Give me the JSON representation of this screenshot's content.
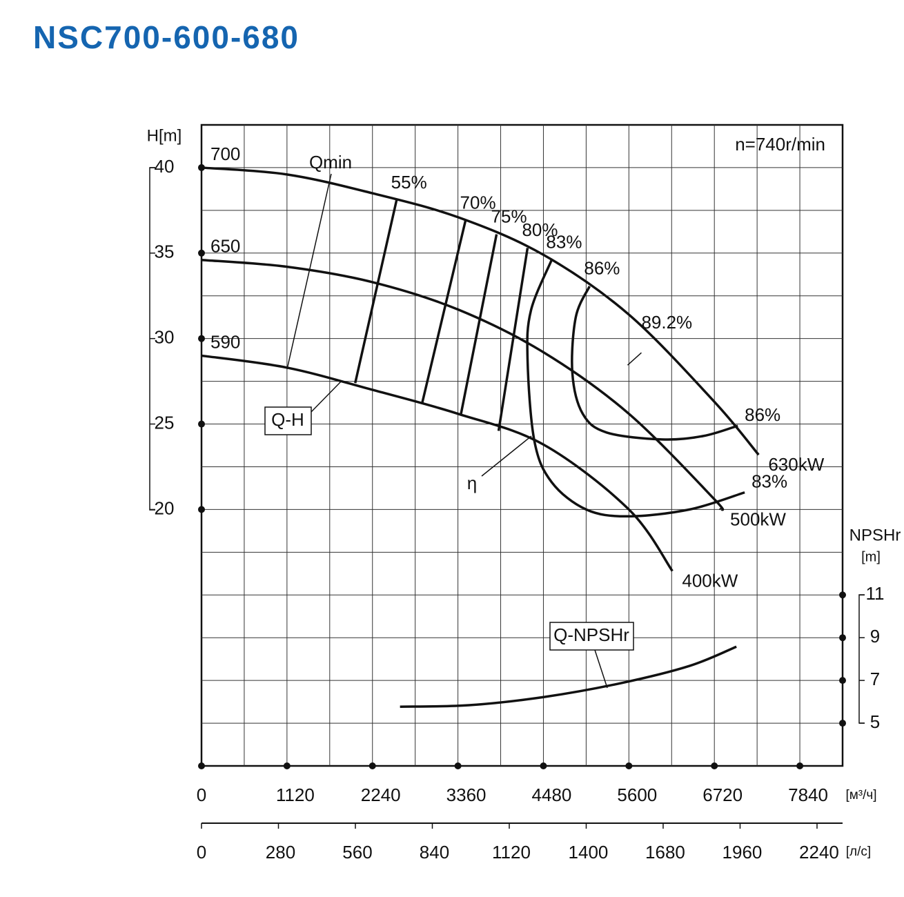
{
  "title": "NSC700-600-680",
  "chart_data": {
    "type": "line",
    "speed_label": "n=740r/min",
    "xlim": [
      0,
      8400
    ],
    "xticks": [
      0,
      1120,
      2240,
      3360,
      4480,
      5600,
      6720,
      7840
    ],
    "x_unit_label": "[м³/ч]",
    "x2lim": [
      0,
      2333
    ],
    "x2ticks": [
      0,
      280,
      560,
      840,
      1120,
      1400,
      1680,
      1960,
      2240
    ],
    "x2_unit_label": "[л/с]",
    "ylabel": "H[m]",
    "ylim": [
      5,
      42.5
    ],
    "yticks": [
      20,
      25,
      30,
      35,
      40
    ],
    "y2label": "NPSHr",
    "y2unit": "[m]",
    "y2lim": [
      3,
      33
    ],
    "y2ticks": [
      5,
      7,
      9,
      11
    ],
    "grid": true,
    "xgrid": [
      560,
      1120,
      1680,
      2240,
      2800,
      3360,
      3920,
      4480,
      5040,
      5600,
      6160,
      6720,
      7280,
      7840
    ],
    "ygrid": [
      7.5,
      10,
      12.5,
      15,
      17.5,
      20,
      22.5,
      25,
      27.5,
      30,
      32.5,
      35,
      37.5,
      40
    ],
    "color": "#111111",
    "series": [
      {
        "name": "700",
        "power_label": "630kW",
        "x": [
          0,
          1120,
          2240,
          3360,
          4480,
          5600,
          6720,
          7300
        ],
        "values": [
          40,
          39.6,
          38.5,
          37.1,
          34.9,
          31.4,
          26.3,
          23.2
        ]
      },
      {
        "name": "650",
        "power_label": "500kW",
        "x": [
          0,
          1120,
          2240,
          3360,
          4480,
          5600,
          6720,
          6800
        ],
        "values": [
          34.6,
          34.2,
          33.3,
          31.7,
          29.2,
          25.6,
          20.6,
          20.0
        ]
      },
      {
        "name": "590",
        "power_label": "400kW",
        "x": [
          0,
          1120,
          2240,
          3360,
          4480,
          5600,
          6170
        ],
        "values": [
          29.0,
          28.3,
          27.0,
          25.6,
          23.8,
          20.0,
          16.4
        ]
      }
    ],
    "efficiency_lines": [
      {
        "label": "55%",
        "x": [
          2556,
          2014
        ],
        "values": [
          38.1,
          27.4
        ]
      },
      {
        "label": "70%",
        "x": [
          3459,
          2890
        ],
        "values": [
          36.9,
          26.2
        ]
      },
      {
        "label": "75%",
        "x": [
          3866,
          3396
        ],
        "values": [
          36.1,
          25.5
        ]
      },
      {
        "label": "80%",
        "x": [
          4272,
          3893
        ],
        "values": [
          35.3,
          24.6
        ]
      },
      {
        "label": "83%",
        "x": [
          4588,
          4317,
          4272,
          4362,
          4588,
          5040,
          5582,
          6395,
          7117
        ],
        "values": [
          34.6,
          31.65,
          28.8,
          24.0,
          21.6,
          20.0,
          19.6,
          20.0,
          21.0
        ]
      },
      {
        "label": "86%",
        "x": [
          5085,
          4904,
          4859,
          4995,
          5311,
          6033,
          6575,
          7027
        ],
        "values": [
          33.06,
          31.25,
          28.0,
          25.6,
          24.5,
          24.1,
          24.3,
          24.9
        ]
      }
    ],
    "best_efficiency": {
      "label": "89.2%",
      "x": 5990,
      "value": 28.85
    },
    "npsh": {
      "name": "Q-NPSHr",
      "axis": "y2",
      "x": [
        2601,
        3505,
        4498,
        5492,
        6395,
        7009
      ],
      "values": [
        5.77,
        5.84,
        6.23,
        6.87,
        7.68,
        8.58
      ]
    },
    "annotations": {
      "qmin": "Qmin",
      "qh": "Q-H",
      "eta": "η"
    }
  }
}
